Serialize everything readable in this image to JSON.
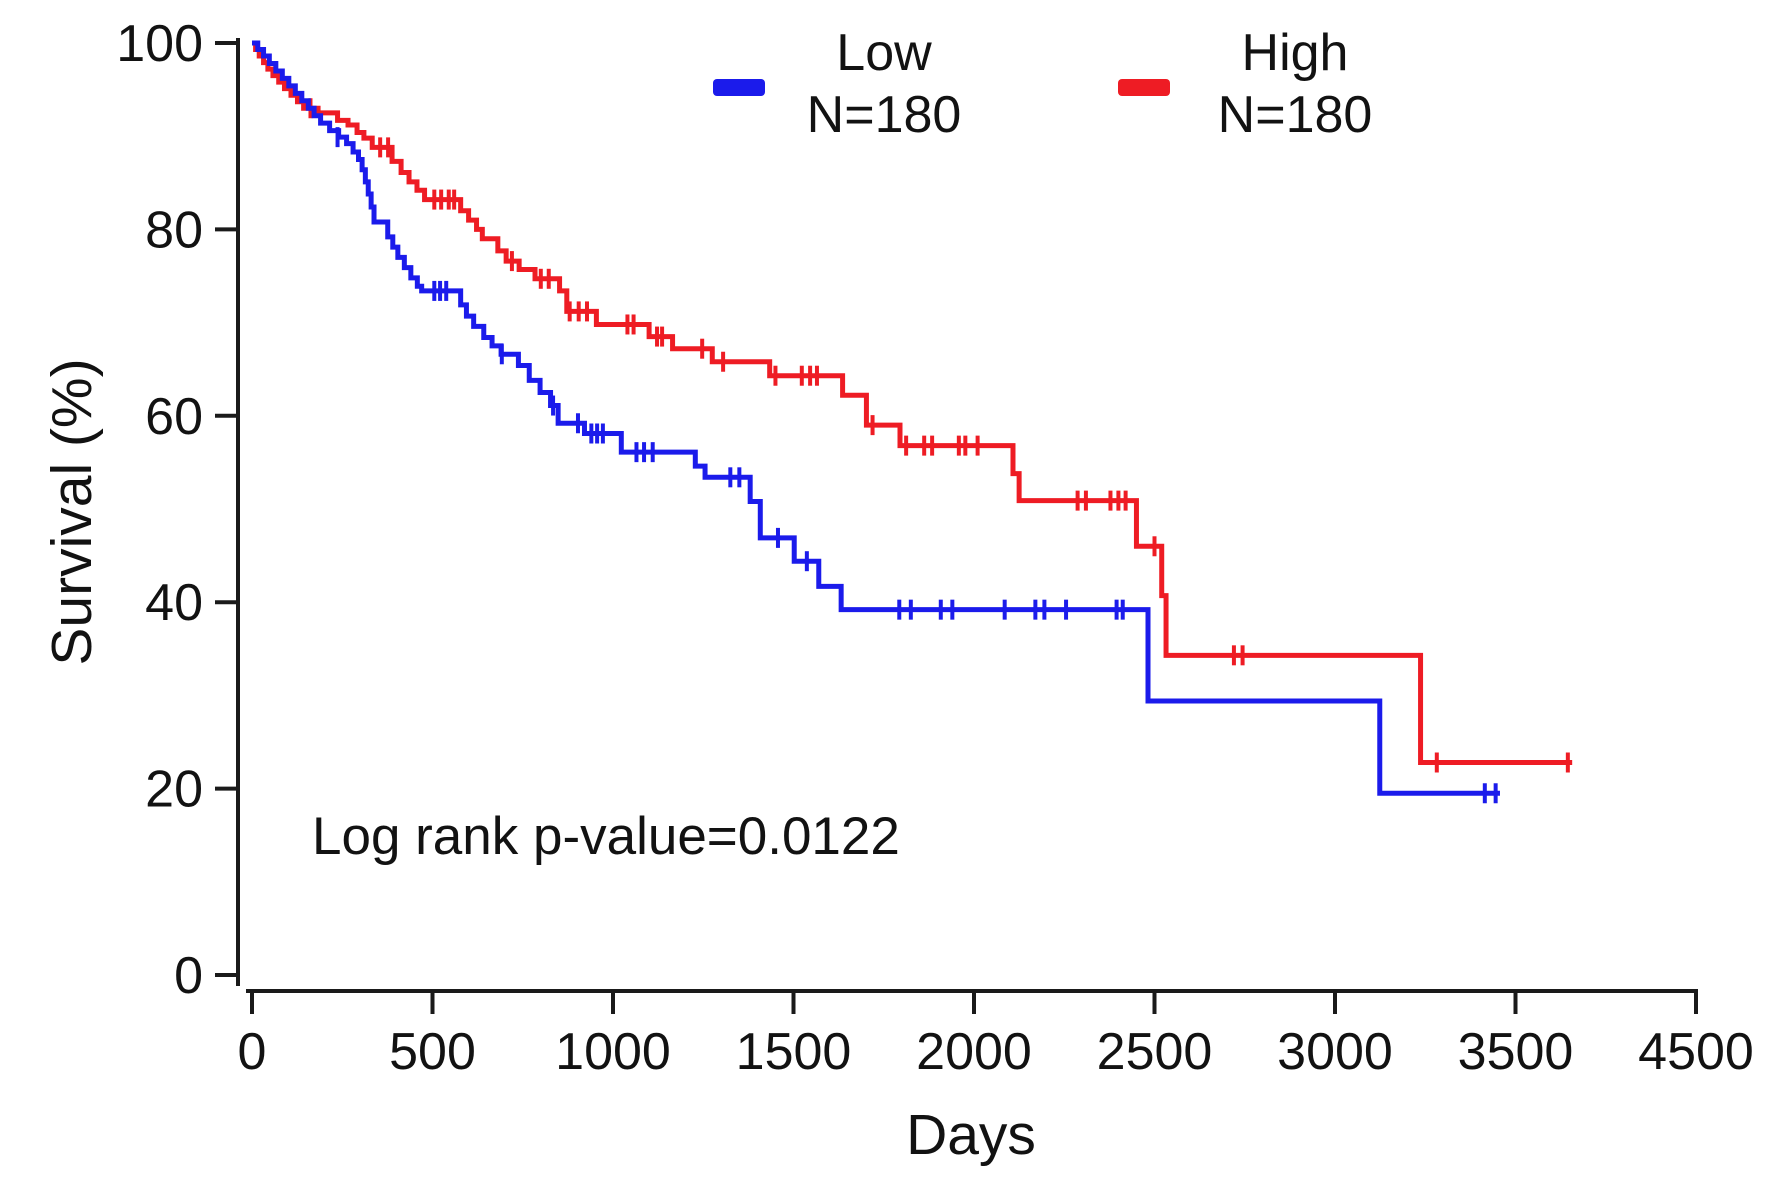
{
  "chart_data": {
    "type": "line",
    "subtype": "kaplan-meier-step",
    "title": "",
    "xlabel": "Days",
    "ylabel": "Survival (%)",
    "annotation": "Log rank p-value=0.0122",
    "x_tick_labels": [
      "0",
      "500",
      "1000",
      "1500",
      "2000",
      "2500",
      "3000",
      "3500",
      "4500"
    ],
    "y_tick_labels": [
      "0",
      "20",
      "40",
      "60",
      "80",
      "100"
    ],
    "y_tick_values": [
      0,
      20,
      40,
      60,
      80,
      100
    ],
    "ylim": [
      0,
      100
    ],
    "grid": false,
    "legend_position": "top-center",
    "axis_color": "#1a1a1a",
    "text_color": "#121212",
    "series": [
      {
        "name": "High",
        "n_label": "N=180",
        "color": "#ee1c24",
        "end_day": 3657,
        "steps": [
          [
            0,
            100
          ],
          [
            10,
            99.3
          ],
          [
            20,
            98.6
          ],
          [
            32,
            97.9
          ],
          [
            44,
            97.2
          ],
          [
            58,
            96.5
          ],
          [
            74,
            95.8
          ],
          [
            90,
            95.1
          ],
          [
            108,
            94.4
          ],
          [
            126,
            93.7
          ],
          [
            143,
            93.0
          ],
          [
            183,
            92.5
          ],
          [
            237,
            91.7
          ],
          [
            266,
            91.2
          ],
          [
            291,
            90.4
          ],
          [
            310,
            89.8
          ],
          [
            333,
            88.8
          ],
          [
            388,
            87.3
          ],
          [
            413,
            86.1
          ],
          [
            435,
            85.1
          ],
          [
            457,
            84.2
          ],
          [
            478,
            83.2
          ],
          [
            578,
            82.0
          ],
          [
            600,
            81.0
          ],
          [
            622,
            80.0
          ],
          [
            638,
            79.0
          ],
          [
            681,
            77.7
          ],
          [
            704,
            76.6
          ],
          [
            740,
            75.7
          ],
          [
            784,
            74.7
          ],
          [
            852,
            73.4
          ],
          [
            872,
            71.2
          ],
          [
            954,
            69.8
          ],
          [
            1100,
            68.5
          ],
          [
            1165,
            67.2
          ],
          [
            1275,
            65.8
          ],
          [
            1434,
            64.3
          ],
          [
            1636,
            62.2
          ],
          [
            1702,
            59.0
          ],
          [
            1795,
            56.8
          ],
          [
            2108,
            53.8
          ],
          [
            2125,
            50.9
          ],
          [
            2450,
            46.0
          ],
          [
            2520,
            40.7
          ],
          [
            2532,
            34.3
          ],
          [
            3237,
            22.8
          ]
        ],
        "censors": [
          [
            162,
            93.0
          ],
          [
            355,
            88.8
          ],
          [
            377,
            88.8
          ],
          [
            505,
            83.2
          ],
          [
            524,
            83.2
          ],
          [
            545,
            83.2
          ],
          [
            560,
            83.2
          ],
          [
            720,
            76.6
          ],
          [
            800,
            74.7
          ],
          [
            822,
            74.7
          ],
          [
            880,
            71.2
          ],
          [
            905,
            71.2
          ],
          [
            928,
            71.2
          ],
          [
            1040,
            69.8
          ],
          [
            1057,
            69.8
          ],
          [
            1122,
            68.5
          ],
          [
            1136,
            68.5
          ],
          [
            1247,
            67.2
          ],
          [
            1305,
            65.8
          ],
          [
            1450,
            64.3
          ],
          [
            1523,
            64.3
          ],
          [
            1546,
            64.3
          ],
          [
            1565,
            64.3
          ],
          [
            1719,
            59.0
          ],
          [
            1812,
            56.8
          ],
          [
            1862,
            56.8
          ],
          [
            1884,
            56.8
          ],
          [
            1958,
            56.8
          ],
          [
            1976,
            56.8
          ],
          [
            2010,
            56.8
          ],
          [
            2287,
            50.9
          ],
          [
            2310,
            50.9
          ],
          [
            2378,
            50.9
          ],
          [
            2400,
            50.9
          ],
          [
            2420,
            50.9
          ],
          [
            2500,
            46.0
          ],
          [
            2720,
            34.3
          ],
          [
            2744,
            34.3
          ],
          [
            3282,
            22.8
          ],
          [
            3645,
            22.8
          ]
        ]
      },
      {
        "name": "Low",
        "n_label": "N=180",
        "color": "#1b1beb",
        "end_day": 3457,
        "steps": [
          [
            0,
            100
          ],
          [
            16,
            99.3
          ],
          [
            32,
            98.6
          ],
          [
            48,
            97.8
          ],
          [
            66,
            97.0
          ],
          [
            84,
            96.2
          ],
          [
            102,
            95.4
          ],
          [
            120,
            94.6
          ],
          [
            138,
            93.8
          ],
          [
            156,
            93.0
          ],
          [
            172,
            92.2
          ],
          [
            190,
            91.4
          ],
          [
            215,
            90.6
          ],
          [
            240,
            89.9
          ],
          [
            262,
            89.2
          ],
          [
            280,
            88.3
          ],
          [
            295,
            87.5
          ],
          [
            305,
            86.4
          ],
          [
            314,
            85.1
          ],
          [
            322,
            83.8
          ],
          [
            330,
            82.4
          ],
          [
            338,
            80.8
          ],
          [
            376,
            79.2
          ],
          [
            390,
            78.1
          ],
          [
            404,
            77.0
          ],
          [
            422,
            75.9
          ],
          [
            440,
            74.8
          ],
          [
            458,
            73.9
          ],
          [
            470,
            73.4
          ],
          [
            578,
            71.9
          ],
          [
            594,
            70.7
          ],
          [
            614,
            69.6
          ],
          [
            642,
            68.4
          ],
          [
            665,
            67.5
          ],
          [
            690,
            66.6
          ],
          [
            738,
            65.4
          ],
          [
            768,
            63.8
          ],
          [
            798,
            62.5
          ],
          [
            827,
            61.1
          ],
          [
            848,
            59.2
          ],
          [
            921,
            58.1
          ],
          [
            1023,
            56.1
          ],
          [
            1228,
            54.6
          ],
          [
            1255,
            53.4
          ],
          [
            1380,
            50.8
          ],
          [
            1408,
            46.9
          ],
          [
            1502,
            44.4
          ],
          [
            1570,
            41.7
          ],
          [
            1632,
            39.2
          ],
          [
            2482,
            29.4
          ],
          [
            3124,
            19.5
          ]
        ],
        "censors": [
          [
            237,
            89.9
          ],
          [
            505,
            73.4
          ],
          [
            521,
            73.4
          ],
          [
            538,
            73.4
          ],
          [
            692,
            66.6
          ],
          [
            834,
            61.1
          ],
          [
            903,
            59.2
          ],
          [
            940,
            58.1
          ],
          [
            956,
            58.1
          ],
          [
            972,
            58.1
          ],
          [
            1065,
            56.1
          ],
          [
            1086,
            56.1
          ],
          [
            1110,
            56.1
          ],
          [
            1325,
            53.4
          ],
          [
            1350,
            53.4
          ],
          [
            1457,
            46.9
          ],
          [
            1537,
            44.4
          ],
          [
            1793,
            39.2
          ],
          [
            1825,
            39.2
          ],
          [
            1908,
            39.2
          ],
          [
            1940,
            39.2
          ],
          [
            2085,
            39.2
          ],
          [
            2170,
            39.2
          ],
          [
            2195,
            39.2
          ],
          [
            2255,
            39.2
          ],
          [
            2395,
            39.2
          ],
          [
            2412,
            39.2
          ],
          [
            3415,
            19.5
          ],
          [
            3445,
            19.5
          ]
        ]
      }
    ]
  },
  "legend": {
    "items": [
      {
        "label": "Low",
        "n": "N=180",
        "color": "#1b1beb"
      },
      {
        "label": "High",
        "n": "N=180",
        "color": "#ee1c24"
      }
    ]
  },
  "chart": {
    "annotation": "Log rank p-value=0.0122",
    "xlabel": "Days",
    "ylabel": "Survival (%)"
  }
}
